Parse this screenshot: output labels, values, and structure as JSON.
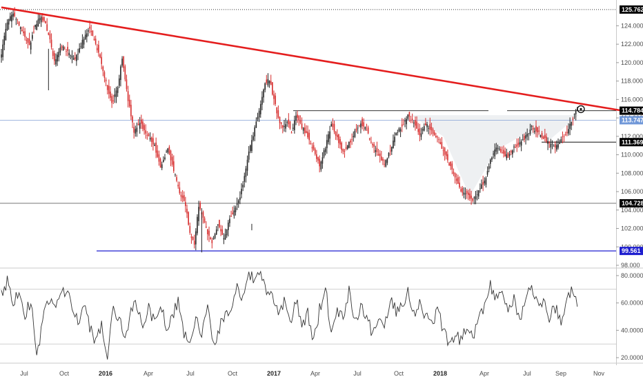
{
  "chart_data": [
    {
      "type": "candlestick",
      "title": "",
      "ylim": [
        98.0,
        126.2
      ],
      "y_ticks": [
        "98.000",
        "100.000",
        "102.000",
        "104.000",
        "106.000",
        "108.000",
        "110.000",
        "112.000",
        "114.000",
        "116.000",
        "118.000",
        "120.000",
        "122.000",
        "124.000"
      ],
      "x_ticks": [
        {
          "label": "Jul",
          "bold": false
        },
        {
          "label": "Oct",
          "bold": false
        },
        {
          "label": "2016",
          "bold": true
        },
        {
          "label": "Apr",
          "bold": false
        },
        {
          "label": "Jul",
          "bold": false
        },
        {
          "label": "Oct",
          "bold": false
        },
        {
          "label": "2017",
          "bold": true
        },
        {
          "label": "Apr",
          "bold": false
        },
        {
          "label": "Jul",
          "bold": false
        },
        {
          "label": "Oct",
          "bold": false
        },
        {
          "label": "2018",
          "bold": true
        },
        {
          "label": "Apr",
          "bold": false
        },
        {
          "label": "Jul",
          "bold": false
        },
        {
          "label": "Sep",
          "bold": false
        },
        {
          "label": "Nov",
          "bold": false
        }
      ],
      "price_path_waypoints": [
        [
          0,
          121.0
        ],
        [
          4,
          124.5
        ],
        [
          8,
          125.2
        ],
        [
          14,
          123.5
        ],
        [
          19,
          121.8
        ],
        [
          23,
          124.0
        ],
        [
          27,
          125.0
        ],
        [
          30,
          124.2
        ],
        [
          33,
          122.5
        ],
        [
          36,
          120.0
        ],
        [
          40,
          121.8
        ],
        [
          45,
          121.2
        ],
        [
          50,
          120.2
        ],
        [
          53,
          121.6
        ],
        [
          57,
          123.0
        ],
        [
          60,
          123.7
        ],
        [
          63,
          122.5
        ],
        [
          67,
          120.5
        ],
        [
          71,
          117.8
        ],
        [
          75,
          115.5
        ],
        [
          79,
          117.2
        ],
        [
          82,
          120.5
        ],
        [
          86,
          116.0
        ],
        [
          90,
          112.5
        ],
        [
          94,
          113.5
        ],
        [
          99,
          112.2
        ],
        [
          104,
          111.0
        ],
        [
          108,
          108.5
        ],
        [
          113,
          110.8
        ],
        [
          117,
          108.2
        ],
        [
          121,
          106.0
        ],
        [
          125,
          104.5
        ],
        [
          128,
          101.5
        ],
        [
          131,
          100.2
        ],
        [
          134,
          104.5
        ],
        [
          137,
          103.0
        ],
        [
          140,
          101.5
        ],
        [
          143,
          100.4
        ],
        [
          147,
          102.5
        ],
        [
          151,
          100.8
        ],
        [
          155,
          103.0
        ],
        [
          158,
          103.8
        ],
        [
          161,
          104.9
        ],
        [
          164,
          106.8
        ],
        [
          167,
          109.5
        ],
        [
          170,
          111.5
        ],
        [
          173,
          113.5
        ],
        [
          176,
          115.5
        ],
        [
          179,
          117.8
        ],
        [
          182,
          118.2
        ],
        [
          185,
          116.0
        ],
        [
          188,
          114.0
        ],
        [
          191,
          112.8
        ],
        [
          194,
          113.6
        ],
        [
          197,
          112.5
        ],
        [
          200,
          114.1
        ],
        [
          204,
          113.0
        ],
        [
          208,
          112.0
        ],
        [
          212,
          110.5
        ],
        [
          216,
          108.8
        ],
        [
          220,
          110.8
        ],
        [
          224,
          113.3
        ],
        [
          228,
          111.8
        ],
        [
          232,
          110.2
        ],
        [
          236,
          111.2
        ],
        [
          240,
          112.5
        ],
        [
          244,
          113.5
        ],
        [
          248,
          112.6
        ],
        [
          252,
          111.0
        ],
        [
          256,
          110.0
        ],
        [
          260,
          109.0
        ],
        [
          264,
          110.5
        ],
        [
          268,
          112.5
        ],
        [
          272,
          113.0
        ],
        [
          276,
          114.2
        ],
        [
          280,
          113.5
        ],
        [
          284,
          112.2
        ],
        [
          288,
          113.3
        ],
        [
          292,
          112.6
        ],
        [
          296,
          111.8
        ],
        [
          300,
          110.5
        ],
        [
          304,
          109.0
        ],
        [
          308,
          107.5
        ],
        [
          312,
          106.2
        ],
        [
          316,
          105.6
        ],
        [
          320,
          105.0
        ],
        [
          324,
          106.2
        ],
        [
          328,
          107.0
        ],
        [
          332,
          109.3
        ],
        [
          336,
          110.8
        ],
        [
          340,
          110.2
        ],
        [
          344,
          109.8
        ],
        [
          348,
          110.8
        ],
        [
          352,
          111.2
        ],
        [
          356,
          112.0
        ],
        [
          360,
          113.0
        ],
        [
          364,
          112.5
        ],
        [
          368,
          111.8
        ],
        [
          372,
          111.2
        ],
        [
          376,
          110.8
        ],
        [
          380,
          111.6
        ],
        [
          384,
          112.4
        ],
        [
          388,
          114.0
        ],
        [
          391,
          115.0
        ]
      ],
      "rsi_waypoints": [
        [
          0,
          65
        ],
        [
          4,
          77
        ],
        [
          8,
          58
        ],
        [
          12,
          70
        ],
        [
          16,
          52
        ],
        [
          20,
          62
        ],
        [
          24,
          20
        ],
        [
          28,
          47
        ],
        [
          32,
          62
        ],
        [
          36,
          55
        ],
        [
          40,
          68
        ],
        [
          44,
          70
        ],
        [
          48,
          57
        ],
        [
          52,
          45
        ],
        [
          56,
          58
        ],
        [
          60,
          42
        ],
        [
          64,
          30
        ],
        [
          68,
          45
        ],
        [
          72,
          20
        ],
        [
          76,
          55
        ],
        [
          80,
          48
        ],
        [
          84,
          35
        ],
        [
          88,
          52
        ],
        [
          92,
          60
        ],
        [
          96,
          40
        ],
        [
          100,
          55
        ],
        [
          104,
          48
        ],
        [
          108,
          62
        ],
        [
          112,
          38
        ],
        [
          116,
          52
        ],
        [
          120,
          60
        ],
        [
          124,
          38
        ],
        [
          128,
          30
        ],
        [
          132,
          48
        ],
        [
          136,
          35
        ],
        [
          140,
          62
        ],
        [
          144,
          28
        ],
        [
          148,
          40
        ],
        [
          152,
          55
        ],
        [
          156,
          50
        ],
        [
          160,
          70
        ],
        [
          164,
          63
        ],
        [
          168,
          82
        ],
        [
          172,
          76
        ],
        [
          176,
          80
        ],
        [
          180,
          70
        ],
        [
          184,
          64
        ],
        [
          188,
          52
        ],
        [
          192,
          60
        ],
        [
          196,
          45
        ],
        [
          200,
          62
        ],
        [
          204,
          44
        ],
        [
          208,
          52
        ],
        [
          212,
          32
        ],
        [
          216,
          55
        ],
        [
          220,
          72
        ],
        [
          224,
          38
        ],
        [
          228,
          55
        ],
        [
          232,
          50
        ],
        [
          236,
          70
        ],
        [
          240,
          45
        ],
        [
          244,
          60
        ],
        [
          248,
          48
        ],
        [
          252,
          38
        ],
        [
          256,
          50
        ],
        [
          260,
          42
        ],
        [
          264,
          64
        ],
        [
          268,
          55
        ],
        [
          272,
          60
        ],
        [
          276,
          68
        ],
        [
          280,
          52
        ],
        [
          284,
          62
        ],
        [
          288,
          50
        ],
        [
          292,
          45
        ],
        [
          296,
          55
        ],
        [
          300,
          40
        ],
        [
          304,
          30
        ],
        [
          308,
          38
        ],
        [
          312,
          32
        ],
        [
          316,
          45
        ],
        [
          320,
          34
        ],
        [
          324,
          52
        ],
        [
          328,
          58
        ],
        [
          332,
          72
        ],
        [
          336,
          62
        ],
        [
          340,
          70
        ],
        [
          344,
          55
        ],
        [
          348,
          62
        ],
        [
          352,
          48
        ],
        [
          356,
          60
        ],
        [
          360,
          75
        ],
        [
          364,
          58
        ],
        [
          368,
          62
        ],
        [
          372,
          50
        ],
        [
          376,
          56
        ],
        [
          380,
          46
        ],
        [
          384,
          60
        ],
        [
          388,
          72
        ],
        [
          391,
          62
        ]
      ],
      "levels": [
        {
          "name": "top-level",
          "value": 125.762,
          "style": "dotted",
          "color": "#333333"
        },
        {
          "name": "recent-high",
          "value": 114.784,
          "style": "solid",
          "color": "#333333"
        },
        {
          "name": "current-price",
          "value": 113.747,
          "style": "solid",
          "color": "#8aa6d8"
        },
        {
          "name": "support-1",
          "value": 111.369,
          "style": "solid",
          "color": "#111111"
        },
        {
          "name": "support-2",
          "value": 104.728,
          "style": "solid",
          "color": "#555555"
        },
        {
          "name": "bottom-level",
          "value": 99.561,
          "style": "solid",
          "color": "#1e1ecf"
        }
      ],
      "trendline": {
        "from": [
          0,
          126.0
        ],
        "to": [
          400,
          114.4
        ],
        "color": "#e41e1e"
      },
      "colors": {
        "up": "#222222",
        "down": "#d62b2b",
        "trendline": "#e41e1e"
      }
    },
    {
      "type": "line",
      "ylim": [
        17,
        84
      ],
      "y_ticks": [
        "20.0000",
        "40.0000",
        "60.0000",
        "80.0000"
      ],
      "reference_lines": [
        30,
        70
      ]
    }
  ],
  "price_axis_badges": [
    {
      "text": "125.762",
      "bg": "#000000"
    },
    {
      "text": "114.784",
      "bg": "#000000"
    },
    {
      "text": "113.747",
      "bg": "#6f97d8"
    },
    {
      "text": "111.369",
      "bg": "#000000"
    },
    {
      "text": "104.728",
      "bg": "#000000"
    },
    {
      "text": "99.561",
      "bg": "#1e1ecf"
    }
  ]
}
